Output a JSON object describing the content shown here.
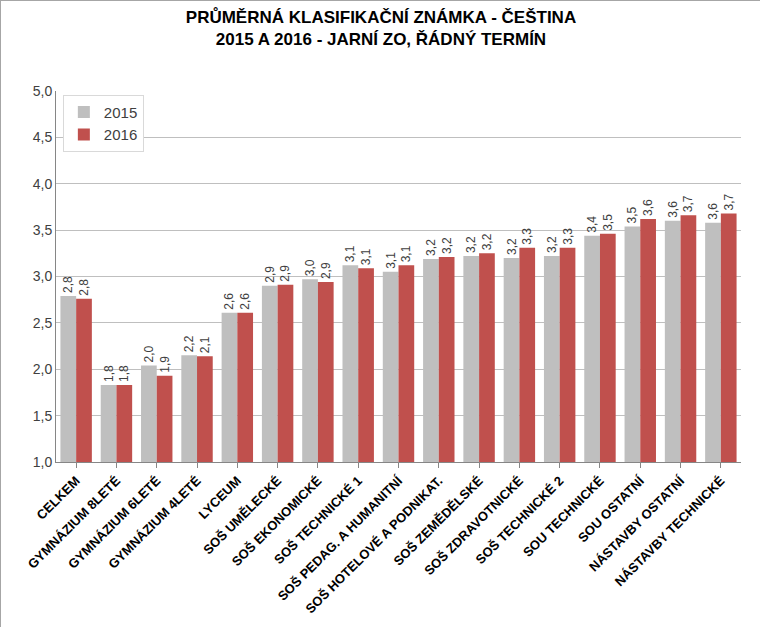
{
  "chart_data": {
    "type": "bar",
    "title": "PRŮMĚRNÁ KLASIFIKAČNÍ ZNÁMKA - ČEŠTINA\n2015 A 2016 - JARNÍ ZO, ŘÁDNÝ TERMÍN",
    "categories": [
      "CELKEM",
      "GYMNÁZIUM 8LETÉ",
      "GYMNÁZIUM 6LETÉ",
      "GYMNÁZIUM 4LETÉ",
      "LYCEUM",
      "SOŠ UMĚLECKÉ",
      "SOŠ EKONOMICKÉ",
      "SOŠ TECHNICKÉ 1",
      "SOŠ PEDAG. A HUMANITNÍ",
      "SOŠ HOTELOVÉ A PODNIKAT.",
      "SOŠ ZEMĚDĚLSKÉ",
      "SOŠ ZDRAVOTNICKÉ",
      "SOŠ TECHNICKÉ 2",
      "SOU TECHNICKÉ",
      "SOU OSTATNÍ",
      "NÁSTAVBY OSTATNÍ",
      "NÁSTAVBY TECHNICKÉ"
    ],
    "series": [
      {
        "name": "2015",
        "color": "#bfbfbf",
        "values": [
          2.79,
          1.83,
          2.04,
          2.15,
          2.61,
          2.9,
          2.97,
          3.12,
          3.05,
          3.19,
          3.22,
          3.2,
          3.22,
          3.44,
          3.54,
          3.6,
          3.58
        ],
        "value_labels": [
          "2,8",
          "1,8",
          "2,0",
          "2,2",
          "2,6",
          "2,9",
          "3,0",
          "3,1",
          "3,1",
          "3,2",
          "3,2",
          "3,2",
          "3,2",
          "3,4",
          "3,5",
          "3,6",
          "3,6"
        ]
      },
      {
        "name": "2016",
        "color": "#c0504d",
        "values": [
          2.76,
          1.83,
          1.93,
          2.14,
          2.61,
          2.91,
          2.94,
          3.09,
          3.12,
          3.21,
          3.25,
          3.31,
          3.31,
          3.46,
          3.62,
          3.66,
          3.68
        ],
        "value_labels": [
          "2,8",
          "1,8",
          "1,9",
          "2,1",
          "2,6",
          "2,9",
          "2,9",
          "3,1",
          "3,1",
          "3,2",
          "3,2",
          "3,3",
          "3,3",
          "3,5",
          "3,6",
          "3,7",
          "3,7"
        ]
      }
    ],
    "ylim": [
      1,
      5
    ],
    "yticks": [
      {
        "value": 1,
        "label": "1,0"
      },
      {
        "value": 1.5,
        "label": "1,5"
      },
      {
        "value": 2,
        "label": "2,0"
      },
      {
        "value": 2.5,
        "label": "2,5"
      },
      {
        "value": 3,
        "label": "3,0"
      },
      {
        "value": 3.5,
        "label": "3,5"
      },
      {
        "value": 4,
        "label": "4,0"
      },
      {
        "value": 4.5,
        "label": "4,5"
      },
      {
        "value": 5,
        "label": "5,0"
      }
    ],
    "grid": true,
    "legend": "upper left",
    "data_labels": true
  }
}
